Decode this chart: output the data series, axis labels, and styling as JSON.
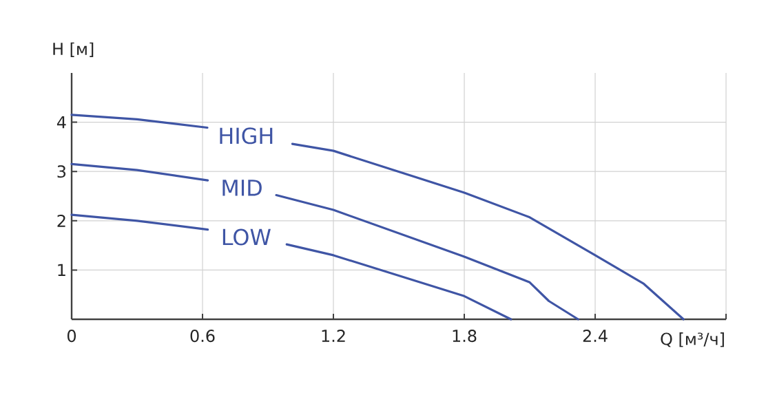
{
  "chart_data": {
    "type": "line",
    "xlabel": "Q [м³/ч]",
    "ylabel": "H [м]",
    "xlim": [
      0,
      3.0
    ],
    "xticks": [
      0,
      0.6,
      1.2,
      1.8,
      2.4,
      {
        "value": 3.0,
        "label": null
      }
    ],
    "ylim": [
      0,
      5
    ],
    "yticks": [
      1,
      2,
      3,
      4
    ],
    "grid": true,
    "line_style": "solid",
    "marker": "none",
    "series": [
      {
        "name": "HIGH",
        "color": "#3f55a5",
        "x": [
          0,
          0.3,
          0.622,
          0.8,
          1.012,
          1.2,
          1.8,
          2.1,
          2.4,
          2.623,
          2.805
        ],
        "values": [
          4.15,
          4.06,
          3.89,
          null,
          3.56,
          3.42,
          2.57,
          2.07,
          1.3,
          0.72,
          0
        ]
      },
      {
        "name": "MID",
        "color": "#3f55a5",
        "x": [
          0,
          0.3,
          0.624,
          0.78,
          0.938,
          1.2,
          1.8,
          2.1,
          2.188,
          2.322
        ],
        "values": [
          3.15,
          3.03,
          2.82,
          null,
          2.52,
          2.22,
          1.27,
          0.75,
          0.37,
          0
        ]
      },
      {
        "name": "LOW",
        "color": "#3f55a5",
        "x": [
          0,
          0.3,
          0.624,
          0.8,
          0.986,
          1.2,
          1.8,
          2.014
        ],
        "values": [
          2.12,
          2.0,
          1.82,
          null,
          1.52,
          1.3,
          0.47,
          0
        ]
      }
    ]
  }
}
